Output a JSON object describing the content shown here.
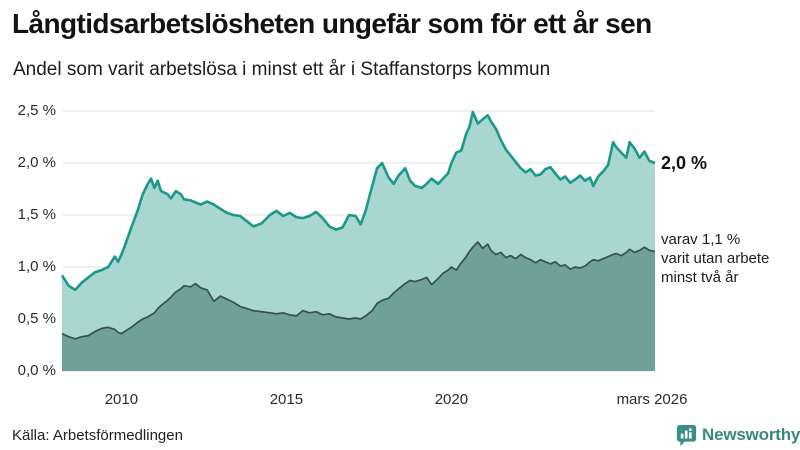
{
  "header": {
    "title": "Långtidsarbetslösheten ungefär som för ett år sen",
    "subtitle": "Andel som varit arbetslösa i minst ett år i Staffanstorps kommun"
  },
  "chart_data": {
    "type": "area",
    "title": "Långtidsarbetslösheten ungefär som för ett år sen",
    "subtitle": "Andel som varit arbetslösa i minst ett år i Staffanstorps kommun",
    "x_unit": "decimal_year",
    "xlim": [
      2008.2,
      2026.17
    ],
    "ylim": [
      0,
      2.5
    ],
    "grid": "horizontal",
    "legend_position": "none",
    "colors": {
      "grid": "#e3e6e5",
      "long_term_line": "#19988b",
      "long_term_fill": "#a9d6d0",
      "very_long_term_line": "#36514c",
      "very_long_term_fill": "#6fa09a"
    },
    "yticks": [
      {
        "value": 0.0,
        "label": "0,0 %"
      },
      {
        "value": 0.5,
        "label": "0,5 %"
      },
      {
        "value": 1.0,
        "label": "1,0 %"
      },
      {
        "value": 1.5,
        "label": "1,5 %"
      },
      {
        "value": 2.0,
        "label": "2,0 %"
      },
      {
        "value": 2.5,
        "label": "2,5 %"
      }
    ],
    "xticks": [
      {
        "value": 2010,
        "label": "2010"
      },
      {
        "value": 2015,
        "label": "2015"
      },
      {
        "value": 2020,
        "label": "2020"
      },
      {
        "value": 2026.17,
        "label": "mars 2026"
      }
    ],
    "x": [
      2008.2,
      2008.4,
      2008.6,
      2008.8,
      2009.0,
      2009.2,
      2009.4,
      2009.6,
      2009.8,
      2009.9,
      2010.0,
      2010.1,
      2010.3,
      2010.5,
      2010.65,
      2010.8,
      2010.9,
      2011.0,
      2011.1,
      2011.2,
      2011.4,
      2011.5,
      2011.65,
      2011.8,
      2011.9,
      2012.1,
      2012.25,
      2012.4,
      2012.6,
      2012.8,
      2013.0,
      2013.2,
      2013.4,
      2013.6,
      2013.8,
      2014.0,
      2014.25,
      2014.5,
      2014.7,
      2014.9,
      2015.1,
      2015.3,
      2015.5,
      2015.7,
      2015.9,
      2016.1,
      2016.3,
      2016.5,
      2016.7,
      2016.9,
      2017.1,
      2017.25,
      2017.4,
      2017.6,
      2017.75,
      2017.9,
      2018.1,
      2018.25,
      2018.4,
      2018.6,
      2018.75,
      2018.9,
      2019.1,
      2019.25,
      2019.4,
      2019.6,
      2019.75,
      2019.9,
      2020.0,
      2020.15,
      2020.3,
      2020.45,
      2020.55,
      2020.65,
      2020.8,
      2020.95,
      2021.1,
      2021.2,
      2021.35,
      2021.5,
      2021.65,
      2021.8,
      2021.95,
      2022.1,
      2022.25,
      2022.4,
      2022.55,
      2022.7,
      2022.85,
      2023.0,
      2023.15,
      2023.3,
      2023.45,
      2023.6,
      2023.75,
      2023.9,
      2024.05,
      2024.2,
      2024.3,
      2024.45,
      2024.6,
      2024.75,
      2024.9,
      2025.0,
      2025.15,
      2025.3,
      2025.4,
      2025.55,
      2025.7,
      2025.85,
      2026.0,
      2026.17
    ],
    "series": [
      {
        "name": "Arbetslösa minst ett år",
        "values": [
          0.92,
          0.82,
          0.78,
          0.85,
          0.9,
          0.95,
          0.97,
          1.0,
          1.1,
          1.05,
          1.12,
          1.2,
          1.38,
          1.55,
          1.7,
          1.8,
          1.85,
          1.76,
          1.83,
          1.73,
          1.7,
          1.66,
          1.73,
          1.7,
          1.65,
          1.64,
          1.62,
          1.6,
          1.63,
          1.6,
          1.56,
          1.52,
          1.5,
          1.49,
          1.44,
          1.39,
          1.42,
          1.5,
          1.54,
          1.49,
          1.52,
          1.48,
          1.47,
          1.49,
          1.53,
          1.47,
          1.39,
          1.36,
          1.38,
          1.5,
          1.49,
          1.41,
          1.54,
          1.78,
          1.95,
          2.0,
          1.86,
          1.8,
          1.88,
          1.95,
          1.83,
          1.78,
          1.76,
          1.8,
          1.85,
          1.8,
          1.85,
          1.9,
          2.0,
          2.1,
          2.12,
          2.28,
          2.35,
          2.49,
          2.38,
          2.42,
          2.46,
          2.4,
          2.33,
          2.22,
          2.13,
          2.07,
          2.01,
          1.95,
          1.91,
          1.94,
          1.88,
          1.89,
          1.94,
          1.96,
          1.9,
          1.84,
          1.87,
          1.81,
          1.84,
          1.88,
          1.83,
          1.86,
          1.78,
          1.87,
          1.92,
          1.98,
          2.2,
          2.15,
          2.1,
          2.05,
          2.2,
          2.14,
          2.05,
          2.11,
          2.02,
          2.0
        ]
      },
      {
        "name": "Arbetslösa minst två år",
        "values": [
          0.36,
          0.33,
          0.31,
          0.33,
          0.34,
          0.38,
          0.41,
          0.42,
          0.4,
          0.37,
          0.36,
          0.38,
          0.42,
          0.47,
          0.5,
          0.52,
          0.54,
          0.56,
          0.6,
          0.63,
          0.68,
          0.71,
          0.76,
          0.79,
          0.82,
          0.81,
          0.84,
          0.8,
          0.78,
          0.67,
          0.72,
          0.69,
          0.66,
          0.62,
          0.6,
          0.58,
          0.57,
          0.56,
          0.55,
          0.56,
          0.54,
          0.53,
          0.58,
          0.56,
          0.57,
          0.54,
          0.55,
          0.52,
          0.51,
          0.5,
          0.51,
          0.5,
          0.53,
          0.58,
          0.65,
          0.68,
          0.7,
          0.75,
          0.79,
          0.84,
          0.87,
          0.86,
          0.88,
          0.9,
          0.83,
          0.89,
          0.94,
          0.97,
          1.0,
          0.97,
          1.04,
          1.1,
          1.15,
          1.19,
          1.24,
          1.18,
          1.22,
          1.16,
          1.12,
          1.14,
          1.09,
          1.11,
          1.08,
          1.12,
          1.09,
          1.07,
          1.04,
          1.07,
          1.05,
          1.03,
          1.05,
          1.01,
          1.02,
          0.98,
          1.0,
          0.99,
          1.01,
          1.05,
          1.07,
          1.06,
          1.08,
          1.1,
          1.12,
          1.13,
          1.11,
          1.14,
          1.17,
          1.14,
          1.16,
          1.19,
          1.16,
          1.15
        ]
      }
    ],
    "annotations": [
      {
        "text": "2,0 %",
        "value": 2.0
      },
      {
        "lines": [
          "varav 1,1 %",
          "varit utan arbete",
          "minst två år"
        ],
        "value": 1.1
      }
    ]
  },
  "footer": {
    "source": "Källa: Arbetsförmedlingen",
    "brand": "Newsworthy"
  }
}
